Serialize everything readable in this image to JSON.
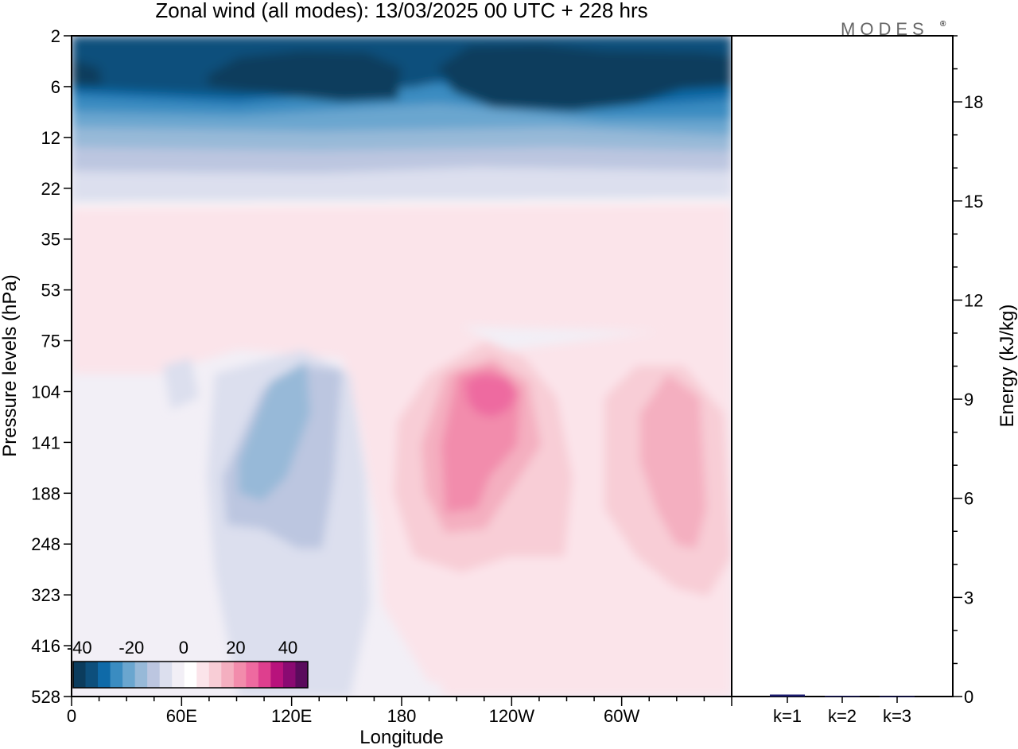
{
  "title": "Zonal wind (all modes):  13/03/2025  00 UTC  + 228 hrs",
  "logo": "MODES",
  "logo_mark": "®",
  "colors": {
    "neg": [
      "#0b3c5d",
      "#0d4f7c",
      "#0f6aa8",
      "#3a8cc1",
      "#6aa6cf",
      "#97b9d8",
      "#bcc6e0",
      "#dcdfee"
    ],
    "neutral": "#f2eff6",
    "zero": "#ffffff",
    "pos": [
      "#fbe4ea",
      "#f8cdd6",
      "#f4afc0",
      "#f28cac",
      "#ee6aa0",
      "#de3f8e",
      "#b8127c",
      "#8a0a72",
      "#5a0b5c"
    ]
  },
  "chart_data": [
    {
      "type": "heatmap",
      "variable": "Zonal wind",
      "xlabel": "Longitude",
      "ylabel": "Pressure levels (hPa)",
      "x_ticks": [
        "0",
        "60E",
        "120E",
        "180",
        "120W",
        "60W"
      ],
      "x_tick_values": [
        0,
        60,
        120,
        180,
        240,
        300
      ],
      "xlim": [
        0,
        360
      ],
      "y_ticks": [
        "2",
        "6",
        "12",
        "22",
        "35",
        "53",
        "75",
        "104",
        "141",
        "188",
        "248",
        "323",
        "416",
        "528"
      ],
      "y_scale": "categorical (model levels, top to bottom)",
      "colorbar": {
        "labels": [
          "-40",
          "-20",
          "0",
          "20",
          "40"
        ],
        "label_values": [
          -40,
          -20,
          0,
          20,
          40
        ],
        "min": -40,
        "max": 45,
        "step": 5,
        "placement": "bottom-left inside plot"
      },
      "features": [
        {
          "value": -40,
          "lon_range": [
            70,
            180
          ],
          "levels": [
            "2",
            "6"
          ]
        },
        {
          "value": -40,
          "lon_range": [
            200,
            320
          ],
          "levels": [
            "2",
            "6"
          ]
        },
        {
          "value": -40,
          "lon_range": [
            0,
            15
          ],
          "levels": [
            "2",
            "6"
          ]
        },
        {
          "value": -20,
          "lon_range": [
            0,
            360
          ],
          "levels": [
            "6",
            "12"
          ]
        },
        {
          "value": 5,
          "lon_range": [
            10,
            100
          ],
          "levels": [
            "35",
            "53"
          ]
        },
        {
          "value": 5,
          "lon_range": [
            150,
            340
          ],
          "levels": [
            "35",
            "53"
          ]
        },
        {
          "value": -10,
          "lon_range": [
            90,
            130
          ],
          "levels": [
            "104",
            "188"
          ]
        },
        {
          "value": 25,
          "lon_range": [
            200,
            240
          ],
          "levels": [
            "104",
            "188"
          ]
        },
        {
          "value": 15,
          "lon_range": [
            315,
            345
          ],
          "levels": [
            "104",
            "248"
          ]
        }
      ]
    },
    {
      "type": "bar",
      "ylabel": "Energy (kJ/kg)",
      "categories": [
        "k=1",
        "k=2",
        "k=3"
      ],
      "values": [
        0.06,
        0.02,
        0.01
      ],
      "ylim": [
        0,
        20
      ],
      "y_ticks": [
        "0",
        "3",
        "6",
        "9",
        "12",
        "15",
        "18"
      ],
      "y_tick_values": [
        0,
        3,
        6,
        9,
        12,
        15,
        18
      ],
      "bar_color": "#1a1a6e",
      "axis_side": "right"
    }
  ]
}
